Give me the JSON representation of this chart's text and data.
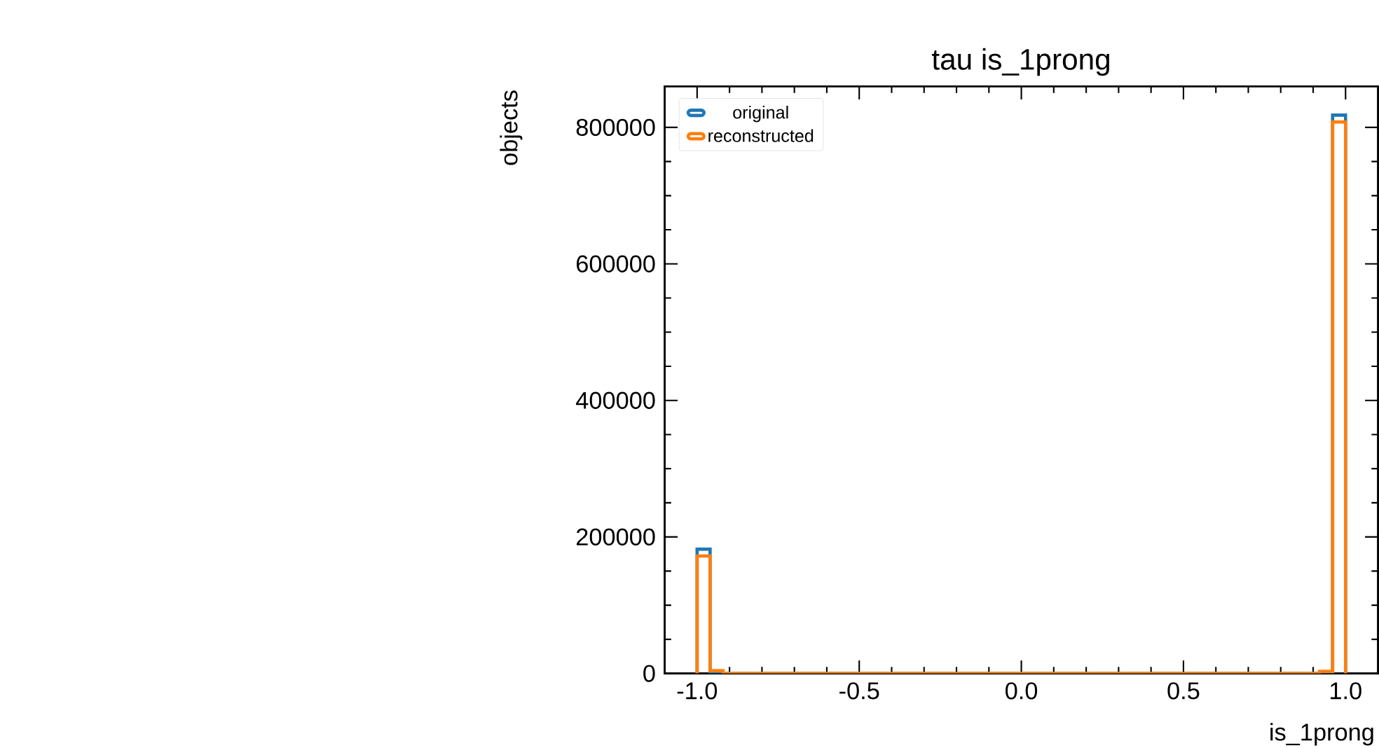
{
  "chart_data": {
    "type": "histogram",
    "title": "tau is_1prong",
    "xlabel": "is_1prong",
    "ylabel": "objects",
    "bins": [
      -1.0,
      -0.96,
      -0.92,
      -0.88,
      -0.84,
      -0.8,
      -0.76,
      -0.72,
      -0.68,
      -0.64,
      -0.6,
      -0.56,
      -0.52,
      -0.48,
      -0.44,
      -0.4,
      -0.36,
      -0.32,
      -0.28,
      -0.24,
      -0.2,
      -0.16,
      -0.12,
      -0.08,
      -0.04,
      0.0,
      0.04,
      0.08,
      0.12,
      0.16,
      0.2,
      0.24,
      0.28,
      0.32,
      0.36,
      0.4,
      0.44,
      0.48,
      0.52,
      0.56,
      0.6,
      0.64,
      0.68,
      0.72,
      0.76,
      0.8,
      0.84,
      0.88,
      0.92,
      0.96,
      1.0
    ],
    "series": [
      {
        "name": "original",
        "color": "#1f77b4",
        "values": [
          182000,
          0,
          0,
          0,
          0,
          0,
          0,
          0,
          0,
          0,
          0,
          0,
          0,
          0,
          0,
          0,
          0,
          0,
          0,
          0,
          0,
          0,
          0,
          0,
          0,
          0,
          0,
          0,
          0,
          0,
          0,
          0,
          0,
          0,
          0,
          0,
          0,
          0,
          0,
          0,
          0,
          0,
          0,
          0,
          0,
          0,
          0,
          0,
          0,
          818000
        ]
      },
      {
        "name": "reconstructed",
        "color": "#ff7f0e",
        "values": [
          172000,
          4000,
          0,
          0,
          0,
          0,
          0,
          0,
          0,
          0,
          0,
          0,
          0,
          0,
          0,
          0,
          0,
          0,
          0,
          0,
          0,
          0,
          0,
          0,
          0,
          0,
          0,
          0,
          0,
          0,
          0,
          0,
          0,
          0,
          0,
          0,
          0,
          0,
          0,
          0,
          0,
          0,
          0,
          0,
          0,
          0,
          0,
          0,
          3000,
          808000
        ]
      }
    ],
    "xlim": [
      -1.1,
      1.1
    ],
    "ylim": [
      0,
      860000
    ],
    "xticks": [
      {
        "value": -1.0,
        "label": "-1.0"
      },
      {
        "value": -0.5,
        "label": "-0.5"
      },
      {
        "value": 0.0,
        "label": "0.0"
      },
      {
        "value": 0.5,
        "label": "0.5"
      },
      {
        "value": 1.0,
        "label": "1.0"
      }
    ],
    "yticks": [
      0,
      200000,
      400000,
      600000,
      800000
    ],
    "legend": "top left",
    "grid": false
  }
}
